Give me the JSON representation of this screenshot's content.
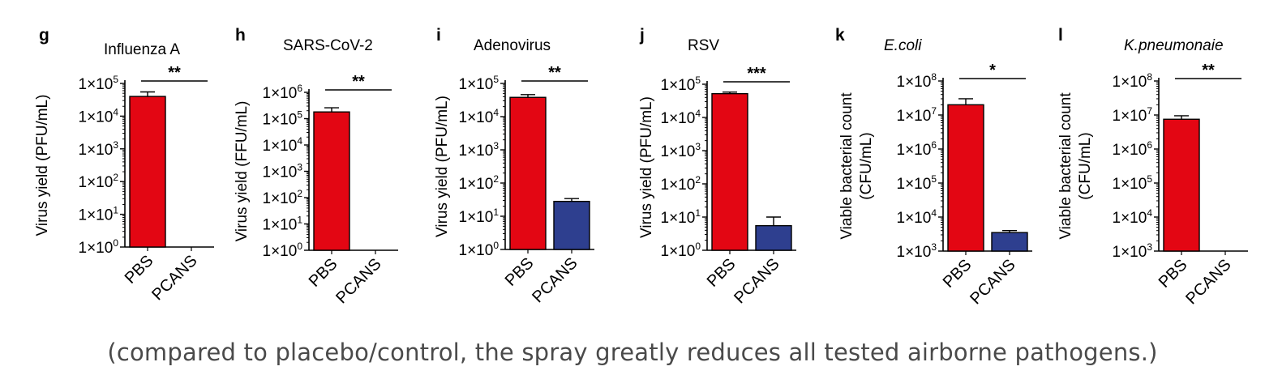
{
  "colors": {
    "pbs": "#e30613",
    "pcans": "#2e3f8f",
    "axis": "#000000"
  },
  "caption": "(compared to placebo/control, the spray greatly reduces all tested airborne pathogens.)",
  "chart_data": [
    {
      "type": "bar",
      "panel": "g",
      "title": "Influenza A",
      "italic_title": false,
      "ylabel": [
        "Virus yield (PFU/mL)"
      ],
      "ylim_exp": [
        0,
        5
      ],
      "log_scale": true,
      "categories": [
        "PBS",
        "PCANS"
      ],
      "values": [
        40000,
        null
      ],
      "errors": [
        15000,
        null
      ],
      "significance": "**"
    },
    {
      "type": "bar",
      "panel": "h",
      "title": "SARS-CoV-2",
      "italic_title": false,
      "ylabel": [
        "Virus yield (FFU/mL)"
      ],
      "ylim_exp": [
        0,
        6
      ],
      "log_scale": true,
      "categories": [
        "PBS",
        "PCANS"
      ],
      "values": [
        180000,
        null
      ],
      "errors": [
        80000,
        null
      ],
      "significance": "**"
    },
    {
      "type": "bar",
      "panel": "i",
      "title": "Adenovirus",
      "italic_title": false,
      "ylabel": [
        "Virus yield (PFU/mL)"
      ],
      "ylim_exp": [
        0,
        5
      ],
      "log_scale": true,
      "categories": [
        "PBS",
        "PCANS"
      ],
      "values": [
        38000,
        28
      ],
      "errors": [
        8000,
        6
      ],
      "significance": "**"
    },
    {
      "type": "bar",
      "panel": "j",
      "title": "RSV",
      "italic_title": false,
      "ylabel": [
        "Virus yield (PFU/mL)"
      ],
      "ylim_exp": [
        0,
        5
      ],
      "log_scale": true,
      "categories": [
        "PBS",
        "PCANS"
      ],
      "values": [
        52000,
        5.5
      ],
      "errors": [
        6000,
        4.5
      ],
      "significance": "***"
    },
    {
      "type": "bar",
      "panel": "k",
      "title": "E.coli",
      "italic_title": true,
      "ylabel": [
        "Viable bacterial count",
        "(CFU/mL)"
      ],
      "ylim_exp": [
        3,
        8
      ],
      "log_scale": true,
      "categories": [
        "PBS",
        "PCANS"
      ],
      "values": [
        20000000,
        3500
      ],
      "errors": [
        10000000,
        500
      ],
      "significance": "*"
    },
    {
      "type": "bar",
      "panel": "l",
      "title": "K.pneumonaie",
      "italic_title": true,
      "ylabel": [
        "Viable bacterial count",
        "(CFU/mL)"
      ],
      "ylim_exp": [
        3,
        8
      ],
      "log_scale": true,
      "categories": [
        "PBS",
        "PCANS"
      ],
      "values": [
        7500000,
        null
      ],
      "errors": [
        2000000,
        null
      ],
      "significance": "**"
    }
  ]
}
